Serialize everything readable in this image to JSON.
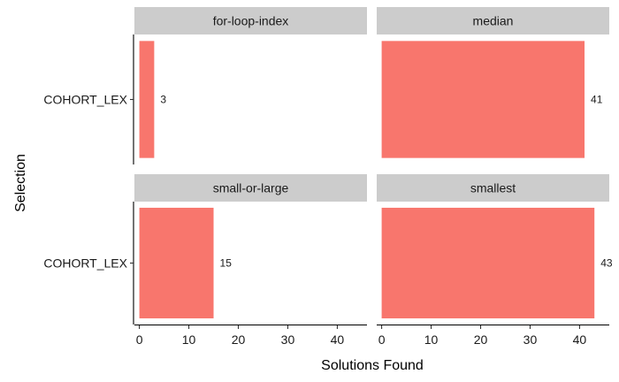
{
  "chart_data": {
    "type": "bar",
    "orientation": "horizontal",
    "facet_layout": "2x2",
    "xlabel": "Solutions Found",
    "ylabel": "Selection",
    "xlim": [
      -1,
      46
    ],
    "x_ticks": [
      0,
      10,
      20,
      30,
      40
    ],
    "category": "COHORT_LEX",
    "bar_color": "#F8766D",
    "strip_color": "#CCCCCC",
    "grid": false,
    "legend": "none",
    "facets": [
      {
        "name": "for-loop-index",
        "category": "COHORT_LEX",
        "value": 3,
        "label": "3"
      },
      {
        "name": "median",
        "category": "COHORT_LEX",
        "value": 41,
        "label": "41"
      },
      {
        "name": "small-or-large",
        "category": "COHORT_LEX",
        "value": 15,
        "label": "15"
      },
      {
        "name": "smallest",
        "category": "COHORT_LEX",
        "value": 43,
        "label": "43"
      }
    ]
  }
}
